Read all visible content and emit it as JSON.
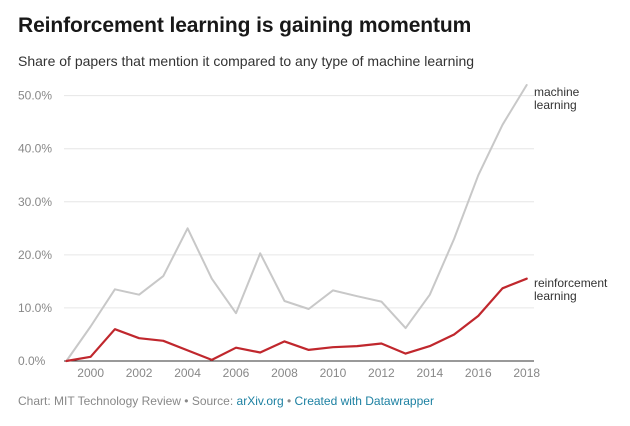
{
  "header": {
    "title": "Reinforcement learning is gaining momentum",
    "subtitle": "Share of papers that mention it compared to any type of machine learning"
  },
  "footer": {
    "prefix": "Chart: MIT Technology Review • Source: ",
    "source_link": "arXiv.org",
    "separator": " • ",
    "created_link": "Created with Datawrapper"
  },
  "chart_data": {
    "type": "line",
    "title": "Reinforcement learning is gaining momentum",
    "subtitle": "Share of papers that mention it compared to any type of machine learning",
    "xlabel": "",
    "ylabel": "",
    "x": [
      1999,
      2000,
      2001,
      2002,
      2003,
      2004,
      2005,
      2006,
      2007,
      2008,
      2009,
      2010,
      2011,
      2012,
      2013,
      2014,
      2015,
      2016,
      2017,
      2018
    ],
    "xlim": [
      1998.9,
      2018.3
    ],
    "ylim": [
      0,
      52
    ],
    "x_ticks": [
      2000,
      2002,
      2004,
      2006,
      2008,
      2010,
      2012,
      2014,
      2016,
      2018
    ],
    "y_ticks": [
      0,
      10,
      20,
      30,
      40,
      50
    ],
    "y_tick_labels": [
      "0.0%",
      "10.0%",
      "20.0%",
      "30.0%",
      "40.0%",
      "50.0%"
    ],
    "series": [
      {
        "name": "machine learning",
        "label_lines": [
          "machine",
          "learning"
        ],
        "color": "#c8c8c8",
        "values": [
          0,
          6.5,
          13.5,
          12.5,
          16,
          25,
          15.5,
          9,
          20.3,
          11.3,
          9.8,
          13.3,
          12.2,
          11.2,
          6.2,
          12.5,
          23,
          35,
          44.5,
          52
        ]
      },
      {
        "name": "reinforcement learning",
        "label_lines": [
          "reinforcement",
          "learning"
        ],
        "color": "#c0272d",
        "values": [
          0,
          0.8,
          6,
          4.3,
          3.8,
          2,
          0.2,
          2.5,
          1.6,
          3.7,
          2.1,
          2.6,
          2.8,
          3.3,
          1.4,
          2.8,
          5,
          8.5,
          13.7,
          15.5
        ]
      }
    ],
    "grid": true,
    "legend": "direct labels at right end of lines"
  }
}
